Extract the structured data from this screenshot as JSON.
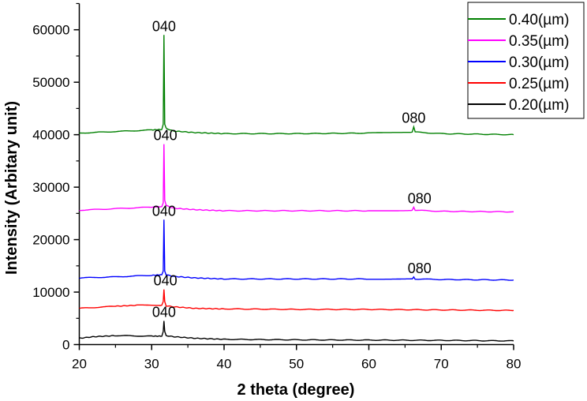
{
  "chart_data": {
    "type": "line",
    "title": "",
    "xlabel": "2 theta (degree)",
    "ylabel": "Intensity (Arbitary unit)",
    "xlim": [
      20,
      80
    ],
    "ylim": [
      0,
      65000
    ],
    "xticks": [
      20,
      30,
      40,
      50,
      60,
      70,
      80
    ],
    "yticks": [
      0,
      10000,
      20000,
      30000,
      40000,
      50000,
      60000
    ],
    "grid": false,
    "legend_placement": "top-right",
    "series": [
      {
        "name": "0.40(µm)",
        "color": "#008000",
        "x": [
          20,
          25,
          30,
          31.4,
          31.6,
          31.7,
          31.8,
          32.0,
          33,
          36,
          40,
          50,
          60,
          66.0,
          66.2,
          66.4,
          70,
          80
        ],
        "y": [
          40300,
          40600,
          40900,
          41000,
          42000,
          59000,
          42000,
          41200,
          40700,
          40400,
          40200,
          40200,
          40300,
          40500,
          41500,
          40500,
          40200,
          40000
        ]
      },
      {
        "name": "0.35(µm)",
        "color": "#ff00ff",
        "x": [
          20,
          25,
          30,
          31.4,
          31.6,
          31.7,
          31.8,
          32.0,
          33,
          36,
          40,
          50,
          60,
          66.0,
          66.2,
          66.4,
          70,
          80
        ],
        "y": [
          25600,
          25900,
          26200,
          26300,
          27000,
          38200,
          27500,
          26500,
          26000,
          25700,
          25500,
          25500,
          25500,
          25600,
          26200,
          25600,
          25400,
          25300
        ]
      },
      {
        "name": "0.30(µm)",
        "color": "#0000ff",
        "x": [
          20,
          25,
          30,
          31.4,
          31.6,
          31.7,
          31.8,
          32.0,
          33,
          36,
          40,
          50,
          60,
          66.0,
          66.2,
          66.4,
          70,
          80
        ],
        "y": [
          12700,
          12900,
          13200,
          13300,
          14000,
          23800,
          14000,
          13300,
          13000,
          12700,
          12500,
          12500,
          12500,
          12500,
          12900,
          12500,
          12400,
          12300
        ]
      },
      {
        "name": "0.25(µm)",
        "color": "#ff0000",
        "x": [
          20,
          25,
          28,
          31.4,
          31.6,
          31.7,
          31.8,
          32.0,
          33,
          36,
          40,
          50,
          60,
          70,
          80
        ],
        "y": [
          6900,
          7300,
          7500,
          7500,
          8200,
          10500,
          8200,
          7400,
          7200,
          6900,
          6800,
          6700,
          6700,
          6600,
          6500
        ]
      },
      {
        "name": "0.20(µm)",
        "color": "#000000",
        "x": [
          20,
          22,
          25,
          30,
          31.4,
          31.6,
          31.7,
          31.8,
          32.0,
          33,
          36,
          40,
          50,
          60,
          70,
          80
        ],
        "y": [
          1200,
          1500,
          1700,
          1600,
          1600,
          2500,
          4500,
          2500,
          1700,
          1500,
          1200,
          1000,
          900,
          850,
          800,
          700
        ]
      }
    ],
    "annotations": [
      {
        "text": "040",
        "x": 31.7,
        "y": 59000
      },
      {
        "text": "040",
        "x": 31.9,
        "y": 38200
      },
      {
        "text": "040",
        "x": 31.7,
        "y": 23800
      },
      {
        "text": "040",
        "x": 31.9,
        "y": 10500
      },
      {
        "text": "040",
        "x": 31.7,
        "y": 4500
      },
      {
        "text": "080",
        "x": 66.2,
        "y": 41500
      },
      {
        "text": "080",
        "x": 67.0,
        "y": 26200
      },
      {
        "text": "080",
        "x": 67.0,
        "y": 12900
      }
    ]
  }
}
